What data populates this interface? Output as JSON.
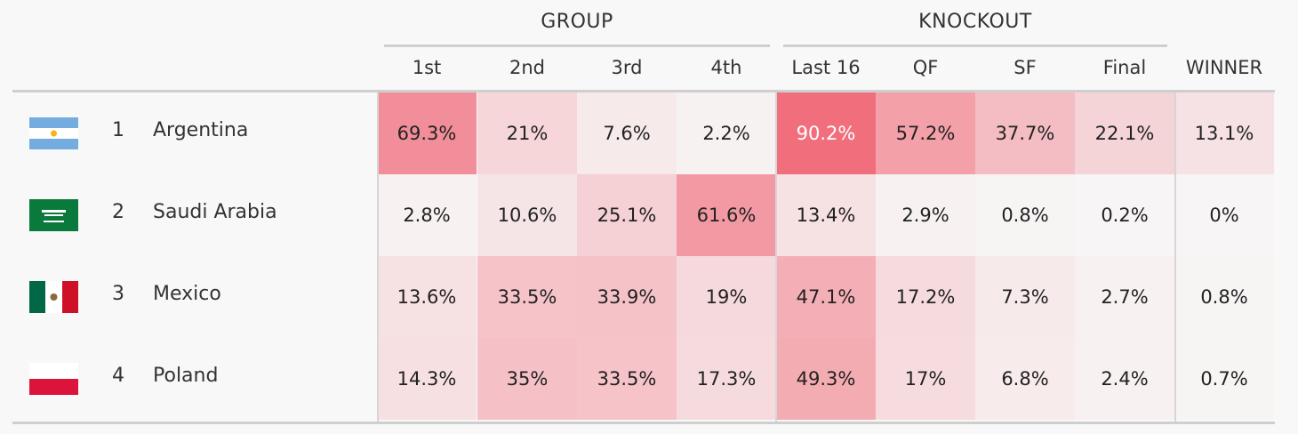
{
  "header": {
    "group_label": "GROUP",
    "knockout_label": "KNOCKOUT"
  },
  "colors": {
    "heat_max": "#f06070",
    "background": "#f8f8f8"
  },
  "chart_data": {
    "type": "table",
    "columns": [
      "1st",
      "2nd",
      "3rd",
      "4th",
      "Last 16",
      "QF",
      "SF",
      "Final",
      "WINNER"
    ],
    "rows": [
      {
        "rank": "1",
        "team": "Argentina",
        "flag": "argentina-flag",
        "values": [
          69.3,
          21,
          7.6,
          2.2,
          90.2,
          57.2,
          37.7,
          22.1,
          13.1
        ],
        "labels": [
          "69.3%",
          "21%",
          "7.6%",
          "2.2%",
          "90.2%",
          "57.2%",
          "37.7%",
          "22.1%",
          "13.1%"
        ]
      },
      {
        "rank": "2",
        "team": "Saudi Arabia",
        "flag": "saudi-arabia-flag",
        "values": [
          2.8,
          10.6,
          25.1,
          61.6,
          13.4,
          2.9,
          0.8,
          0.2,
          0
        ],
        "labels": [
          "2.8%",
          "10.6%",
          "25.1%",
          "61.6%",
          "13.4%",
          "2.9%",
          "0.8%",
          "0.2%",
          "0%"
        ]
      },
      {
        "rank": "3",
        "team": "Mexico",
        "flag": "mexico-flag",
        "values": [
          13.6,
          33.5,
          33.9,
          19,
          47.1,
          17.2,
          7.3,
          2.7,
          0.8
        ],
        "labels": [
          "13.6%",
          "33.5%",
          "33.9%",
          "19%",
          "47.1%",
          "17.2%",
          "7.3%",
          "2.7%",
          "0.8%"
        ]
      },
      {
        "rank": "4",
        "team": "Poland",
        "flag": "poland-flag",
        "values": [
          14.3,
          35,
          33.5,
          17.3,
          49.3,
          17,
          6.8,
          2.4,
          0.7
        ],
        "labels": [
          "14.3%",
          "35%",
          "33.5%",
          "17.3%",
          "49.3%",
          "17%",
          "6.8%",
          "2.4%",
          "0.7%"
        ]
      }
    ]
  }
}
